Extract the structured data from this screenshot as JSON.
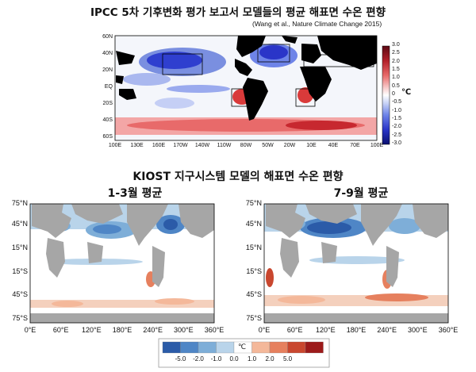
{
  "top": {
    "title": "IPCC 5차 기후변화 평가 보고서 모델들의 평균 해표면 수온 편향",
    "citation": "(Wang et al., Nature Climate Change 2015)",
    "lat_labels": [
      "60N",
      "40N",
      "20N",
      "EQ",
      "20S",
      "40S",
      "60S"
    ],
    "lon_labels": [
      "100E",
      "130E",
      "160E",
      "170W",
      "140W",
      "110W",
      "80W",
      "50W",
      "20W",
      "10E",
      "40E",
      "70E",
      "100E"
    ],
    "colorbar_ticks": [
      "3.0",
      "2.5",
      "2.0",
      "1.5",
      "1.0",
      "0.5",
      "0",
      "-0.5",
      "-1.0",
      "-1.5",
      "-2.0",
      "-2.5",
      "-3.0"
    ],
    "unit": "℃"
  },
  "middle": {
    "title": "KIOST 지구시스템 모델의 해표면 수온 편향",
    "panel_left_title": "1-3월 평균",
    "panel_right_title": "7-9월 평균"
  },
  "bottom": {
    "lat_labels": [
      "75°N",
      "45°N",
      "15°N",
      "15°S",
      "45°S",
      "75°S"
    ],
    "lon_labels": [
      "0°E",
      "60°E",
      "120°E",
      "180°E",
      "240°E",
      "300°E",
      "360°E"
    ],
    "legend_ticks": [
      "-5.0",
      "-2.0",
      "-1.0",
      "0.0",
      "1.0",
      "2.0",
      "5.0"
    ],
    "legend_unit": "℃",
    "legend_colors": [
      "#2b5ba8",
      "#4f86c6",
      "#7eaed8",
      "#b9d4ea",
      "#ffffff",
      "#f4b89a",
      "#e6805e",
      "#c9472f",
      "#9c1a1a"
    ]
  }
}
